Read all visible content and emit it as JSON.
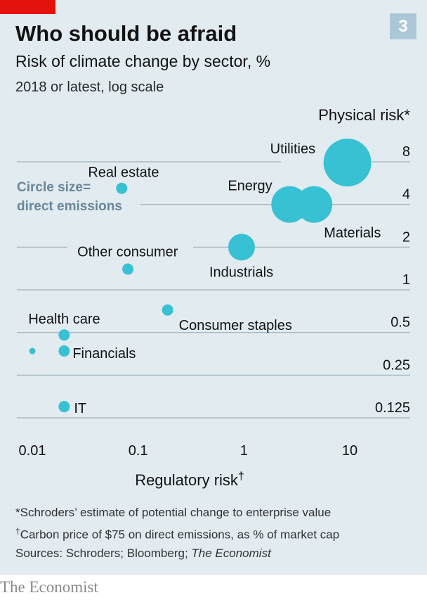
{
  "header": {
    "number": "3",
    "title": "Who should be afraid",
    "subtitle": "Risk of climate change by sector, %",
    "subsubtitle": "2018 or latest, log scale"
  },
  "footer": {
    "note1": "*Schroders’ estimate of potential change to enterprise value",
    "note2_mark": "†",
    "note2": "Carbon price of $75 on direct emissions, as % of market cap",
    "sources_prefix": "Sources: Schroders; Bloomberg; ",
    "sources_italic": "The Economist"
  },
  "brand": "The Economist",
  "colors": {
    "background": "#e1ebf0",
    "bubble": "#38c0d3",
    "gridline": "#9fb0bb",
    "accent_red": "#e3120b",
    "annotation": "#6a8799"
  },
  "chart_data": {
    "type": "scatter",
    "xscale": "log",
    "yscale": "log",
    "xlabel": "Regulatory risk",
    "xlabel_mark": "†",
    "ylabel": "Physical risk*",
    "xlim": [
      0.01,
      10
    ],
    "ylim": [
      0.125,
      8
    ],
    "xticks": [
      0.01,
      0.1,
      1,
      10
    ],
    "xtick_labels": [
      "0.01",
      "0.1",
      "1",
      "10"
    ],
    "yticks": [
      8,
      4,
      2,
      1,
      0.5,
      0.25,
      0.125
    ],
    "ytick_labels": [
      "8",
      "4",
      "2",
      "1",
      "0.5",
      "0.25",
      "0.125"
    ],
    "size_note": [
      "Circle size=",
      "direct emissions"
    ],
    "legend": "none",
    "grid": "horizontal",
    "points": [
      {
        "label": "Real estate",
        "x": 0.07,
        "y": 5.2,
        "size": "small"
      },
      {
        "label": "Utilities",
        "x": 9.5,
        "y": 7.9,
        "size": "largest"
      },
      {
        "label": "Energy",
        "x": 2.7,
        "y": 4.0,
        "size": "large"
      },
      {
        "label": "Materials",
        "x": 4.6,
        "y": 4.0,
        "size": "large"
      },
      {
        "label": "Industrials",
        "x": 0.95,
        "y": 2.0,
        "size": "medium"
      },
      {
        "label": "Other consumer",
        "x": 0.08,
        "y": 1.4,
        "size": "small"
      },
      {
        "label": "Consumer staples",
        "x": 0.19,
        "y": 0.72,
        "size": "small"
      },
      {
        "label": "Health care",
        "x": 0.02,
        "y": 0.48,
        "size": "small"
      },
      {
        "label": "Financials",
        "x": 0.02,
        "y": 0.37,
        "size": "small"
      },
      {
        "label": "",
        "x": 0.01,
        "y": 0.37,
        "size": "tiny"
      },
      {
        "label": "IT",
        "x": 0.02,
        "y": 0.15,
        "size": "small"
      }
    ]
  }
}
